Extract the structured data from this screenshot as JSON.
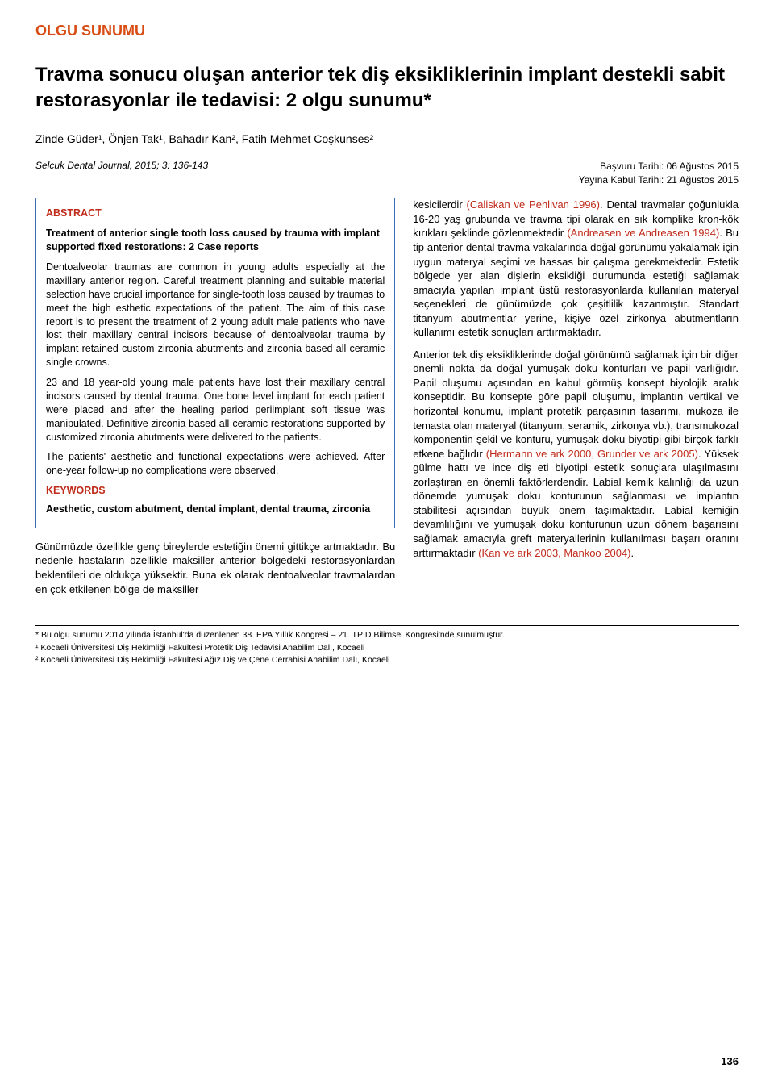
{
  "category": "OLGU SUNUMU",
  "title": "Travma sonucu oluşan anterior tek diş eksikliklerinin implant destekli sabit restorasyonlar ile tedavisi: 2 olgu sunumu*",
  "authors": "Zinde Güder¹, Önjen Tak¹, Bahadır Kan², Fatih Mehmet Coşkunses²",
  "journal": "Selcuk Dental Journal, 2015; 3: 136-143",
  "date_submitted": "Başvuru Tarihi: 06 Ağustos 2015",
  "date_accepted": "Yayına Kabul Tarihi: 21 Ağustos 2015",
  "abstract": {
    "label": "ABSTRACT",
    "subtitle": "Treatment of anterior single tooth loss caused by trauma with implant supported fixed restorations: 2 Case reports",
    "p1": "Dentoalveolar traumas are common in young adults especially at the maxillary anterior region. Careful treatment planning and suitable material selection have crucial importance for single-tooth loss caused by traumas to meet the high esthetic expectations of the patient. The aim of this case report is to present the treatment of 2 young adult male patients who have lost their maxillary central incisors because of dentoalveolar trauma by implant retained custom zirconia abutments and zirconia based all-ceramic single crowns.",
    "p2": "23 and 18 year-old young male patients have lost their maxillary central incisors caused by dental trauma. One bone level implant for each patient were placed and after the healing period periimplant soft tissue was manipulated. Definitive zirconia based all-ceramic restorations supported by customized zirconia abutments were delivered to the patients.",
    "p3": "The patients' aesthetic and functional expectations were achieved. After one-year follow-up no complications were observed.",
    "keywords_label": "KEYWORDS",
    "keywords": "Aesthetic, custom abutment, dental implant, dental trauma, zirconia"
  },
  "left_body": "Günümüzde özellikle genç bireylerde estetiğin önemi gittikçe artmaktadır. Bu nedenle hastaların özellikle maksiller anterior bölgedeki restorasyonlardan beklentileri de oldukça yüksektir. Buna ek olarak dentoalveolar travmalardan en çok etkilenen bölge de maksiller",
  "right": {
    "p1a": "kesicilerdir ",
    "c1": "(Caliskan ve Pehlivan 1996)",
    "p1b": ". Dental travmalar çoğunlukla 16-20 yaş grubunda ve travma tipi olarak en sık komplike kron-kök kırıkları şeklinde gözlenmektedir ",
    "c2": "(Andreasen ve Andreasen 1994)",
    "p1c": ". Bu tip anterior dental travma vakalarında doğal görünümü yakalamak için uygun materyal seçimi ve hassas bir çalışma gerekmektedir. Estetik bölgede yer alan dişlerin eksikliği durumunda estetiği sağlamak amacıyla yapılan implant üstü restorasyonlarda kullanılan materyal seçenekleri de günümüzde çok çeşitlilik kazanmıştır. Standart titanyum abutmentlar yerine, kişiye özel zirkonya abutmentların kullanımı estetik sonuçları arttırmaktadır.",
    "p2a": "Anterior tek diş eksikliklerinde doğal görünümü sağlamak için bir diğer önemli nokta da doğal yumuşak doku konturları ve papil varlığıdır. Papil oluşumu açısından en kabul görmüş konsept biyolojik aralık konseptidir. Bu konsepte göre papil oluşumu, implantın vertikal ve horizontal konumu, implant protetik parçasının tasarımı, mukoza ile temasta olan materyal (titanyum, seramik, zirkonya vb.), transmukozal komponentin şekil ve konturu, yumuşak doku biyotipi gibi birçok farklı etkene bağlıdır ",
    "c3": "(Hermann ve ark 2000, Grunder ve ark 2005)",
    "p2b": ". Yüksek gülme hattı ve ince diş eti biyotipi estetik sonuçlara ulaşılmasını zorlaştıran en önemli faktörlerdendir. Labial kemik kalınlığı da uzun dönemde yumuşak doku konturunun sağlanması ve implantın stabilitesi açısından büyük önem taşımaktadır. Labial kemiğin devamlılığını ve yumuşak doku konturunun uzun dönem başarısını sağlamak amacıyla greft materyallerinin kullanılması başarı oranını arttırmaktadır ",
    "c4": "(Kan ve ark 2003, Mankoo 2004)",
    "p2c": "."
  },
  "footnotes": {
    "f1": "* Bu olgu sunumu 2014 yılında İstanbul'da düzenlenen 38. EPA Yıllık Kongresi – 21. TPİD Bilimsel Kongresi'nde sunulmuştur.",
    "f2": "¹ Kocaeli Üniversitesi Diş Hekimliği Fakültesi Protetik Diş Tedavisi Anabilim Dalı, Kocaeli",
    "f3": "² Kocaeli Üniversitesi Diş Hekimliği Fakültesi Ağız Diş ve Çene Cerrahisi Anabilim Dalı, Kocaeli"
  },
  "page_number": "136",
  "colors": {
    "category": "#d84c13",
    "section_label": "#c02a1a",
    "citation": "#c02a1a",
    "box_border": "#3a6fb3",
    "text": "#000000",
    "bg": "#ffffff"
  }
}
